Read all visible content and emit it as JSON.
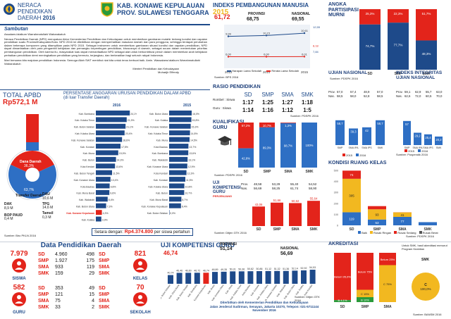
{
  "header": {
    "title_line1": "NERACA",
    "title_line2": "PENDIDIKAN",
    "title_line3": "DAERAH",
    "year": "2016",
    "region_line1": "KAB. KONAWE KEPULAUAN",
    "region_line2": "PROV. SULAWESI TENGGARA"
  },
  "colors": {
    "navy": "#1e4a8a",
    "red": "#e3241b",
    "blue": "#2e6fc4",
    "yellow": "#f2b820",
    "gray": "#8a8a8a",
    "green": "#2a9a3a"
  },
  "sambutan": {
    "title": "Sambutan",
    "greeting": "Assalamu'alaikum Warrahmatullahi Wabarakatuh",
    "body1": "Neraca Pendidikan Daerah (NPD) merupakan Aktor Kementerian Pendidikan dan Kebudayaan untuk memberikan gambaran mutahir tentang kondisi dan capaian pendidikan suatu Provinsi/Kabupaten/Kota. NPD 2016 ini diterbitkan dengan memperhatikan masukan daerah dan para pengguna, sehingga terdapat perubahan dalam beberapa komponen yang ditampilkan pada NPD 2015. Sebagai instrumen untuk memberikan gambaran situasi kondisi dan capaian pendidikan, NPD dapat dimanfaatkan oleh para pengambil kebijakan dan pemangku kepentingan pendidikan, khususnya di daerah, sebagai acuan dalam menentukan prioritas pembangunan pendidikan. Oleh karena itu, masyarakat luas dapat memanfaatkan NPD sebagai alat untuk berkontribusi penuh dalam memberikan arah kebijakan perbaikan pendidikan demi meningkatkan pendidikan yang bermutu, terjangkau, dan berkeadilan bagi seluruh rakyat Indonesia.",
    "body2": "Mari bersama kita majukan pendidikan Indonesia. Semoga Allah SWT meridhoi niat kita untuk terus berbuat baik. Amin. Wassalamu'alaikum Warrahmatullahi Wabarakatuh",
    "signer_title": "Menteri Pendidikan dan Kebudayaan",
    "signer_name": "Muhadjir Effendy"
  },
  "ipm": {
    "title": "INDEKS PEMBANGUNAN MANUSIA",
    "year": "2015",
    "region_value": "61,72",
    "prov_label": "PROVINSI",
    "prov_value": "68,75",
    "nas_label": "NASIONAL",
    "nas_value": "69,55",
    "legend1": "Harapan Lama Sekolah",
    "legend2": "Rerata Lama Sekolah",
    "source": "Sumber: BPS 2016"
  },
  "apm": {
    "title_line1": "ANGKA",
    "title_line2": "PARTISIPASI",
    "title_line3": "MURNI",
    "categories": [
      "SD",
      "SMP",
      "SMA"
    ],
    "source": "Sumber: PDSPK 2016"
  },
  "apbd": {
    "title": "TOTAL APBD",
    "total": "Rp572,1 M",
    "dana_daerah_label": "Dana Daerah",
    "dana_daerah_value": "36,3%",
    "transfer_label": "Transfer Daerah",
    "transfer_value": "63,7%",
    "dak_label": "DAK",
    "dak_value": "8,9 M",
    "dau_label": "DAU",
    "dau_value": "10,6 M",
    "bop_label": "BOP PAUD",
    "bop_value": "0,4 M",
    "tpg_label": "TPG",
    "tpg_value": "14,6 M",
    "tamsil_label": "Tamsil",
    "tamsil_value": "0,3 M",
    "source": "Sumber: Biro PKLN 2016"
  },
  "anggaran": {
    "title": "PERSENTASE ANGGARAN URUSAN PENDIDIKAN DALAM APBD",
    "subtitle": "(di luar Transfer Daerah)",
    "year_left": "2016",
    "year_right": "2015",
    "footer_label": "Setara dengan:",
    "footer_value": "Rp4.374.800",
    "footer_suffix": "per siswa pertahun"
  },
  "rasio": {
    "title": "RASIO PENDIDIKAN",
    "row1_label": "Rombel : Siswa",
    "row2_label": "Guru : Siswa",
    "cols": [
      "SD",
      "SMP",
      "SMA",
      "SMK"
    ],
    "row1": [
      "1:17",
      "1:25",
      "1:27",
      "1:18"
    ],
    "row2": [
      "1:14",
      "1:16",
      "1:12",
      "1:5"
    ],
    "source": "Sumber: PDSPK 2016"
  },
  "kualifikasi": {
    "title_line1": "KUALIFIKASI",
    "title_line2": "GURU",
    "categories": [
      "SD",
      "SMP",
      "SMA",
      "SMK"
    ],
    "source": "Sumber: PDSPK 2016"
  },
  "ukg_level": {
    "title_line1": "UJI",
    "title_line2": "KOMPETENSI",
    "title_line3": "GURU",
    "subtitle": "PERJENJANG",
    "rows_label": [
      "Prov.",
      "Nas."
    ],
    "values_prov": [
      "48,58",
      "53,29",
      "55,40",
      "54,52"
    ],
    "values_nas": [
      "56,69",
      "58,25",
      "61,74",
      "58,90"
    ],
    "categories": [
      "SD",
      "SMP",
      "SMA",
      "SMK"
    ],
    "source": "Sumber: Ditjen GTK 2016"
  },
  "un": {
    "title": "UJIAN NASIONAL",
    "rows_label": [
      "Prov.",
      "Nas."
    ],
    "values_prov": [
      "57,0",
      "57,4",
      "48,9",
      "57,0"
    ],
    "values_nas": [
      "58,5",
      "58,0",
      "52,8",
      "58,5"
    ],
    "categories": [
      "SMP",
      "SMA IPA",
      "SMA IPS",
      "SMK"
    ],
    "legend_2015": "2015",
    "legend_2016": "2016"
  },
  "iiun": {
    "title_line1": "INDEKS INTEGRITAS",
    "title_line2": "UJIAN NASIONAL",
    "rows_label": [
      "Prov.",
      "Nas."
    ],
    "values_prov": [
      "59,1",
      "62,9",
      "55,7",
      "63,0"
    ],
    "values_nas": [
      "62,6",
      "72,0",
      "60,5",
      "70,0"
    ],
    "categories": [
      "SMP",
      "SMA IPA",
      "SMA IPS",
      "SMK"
    ],
    "legend_2015": "2015",
    "legend_2016": "2016",
    "source": "Sumber: Puspendik 2016"
  },
  "kondisi": {
    "title": "KONDISI RUANG KELAS",
    "categories": [
      "SD",
      "SMP",
      "SMA",
      "SMK"
    ],
    "legend": [
      "Baik",
      "Rusak Ringan",
      "Rusak Sedang",
      "Rusak Berat"
    ],
    "source": "Sumber: PDSPK 2016"
  },
  "data_pend": {
    "title": "Data Pendidikan Daerah",
    "siswa_total": "7.979",
    "siswa_label": "SISWA",
    "siswa_rows": [
      {
        "level": "SD",
        "value": "4.960"
      },
      {
        "level": "SMP",
        "value": "1.927"
      },
      {
        "level": "SMA",
        "value": "933"
      },
      {
        "level": "SMK",
        "value": "159"
      }
    ],
    "kelas_total": "821",
    "kelas_label": "KELAS",
    "kelas_rows": [
      {
        "value": "498",
        "level": "SD"
      },
      {
        "value": "175",
        "level": "SMP"
      },
      {
        "value": "119",
        "level": "SMA"
      },
      {
        "value": "29",
        "level": "SMK"
      }
    ],
    "guru_total": "582",
    "guru_label": "GURU",
    "guru_rows": [
      {
        "level": "SD",
        "value": "353"
      },
      {
        "level": "SMP",
        "value": "121"
      },
      {
        "level": "SMA",
        "value": "75"
      },
      {
        "level": "SMK",
        "value": "33"
      }
    ],
    "sekolah_total": "70",
    "sekolah_label": "SEKOLAH",
    "sekolah_rows": [
      {
        "value": "49",
        "level": "SD"
      },
      {
        "value": "15",
        "level": "SMP"
      },
      {
        "value": "4",
        "level": "SMA"
      },
      {
        "value": "2",
        "level": "SMK"
      }
    ]
  },
  "ukg": {
    "title": "UJI KOMPETENSI GURU",
    "region_value": "46,74",
    "prov_label": "PROVINSI",
    "prov_value": "51,14",
    "nas_label": "NASIONAL",
    "nas_value": "56,69",
    "source": "Sumber: Ditjen GTK 2016"
  },
  "footer": {
    "line1": "Diterbitkan oleh Kementerian Pendidikan dan Kebudayaan",
    "line2": "Jalan Jenderal Sudirman, Senayan, Jakarta 10270, Telepon: 021-5711144",
    "line3": "November 2016"
  },
  "akreditasi": {
    "title": "AKREDITASI",
    "note": "Untuk SMK, hasil akreditasi menurut Program Keahlian",
    "categories": [
      "SD",
      "SMP",
      "SMA",
      "SMK"
    ],
    "smk_label": "SMK",
    "source": "Sumber: BANSM 2016"
  },
  "chart_data": [
    {
      "type": "line",
      "title": "INDEKS PEMBANGUNAN MANUSIA",
      "x": [
        "2013",
        "2014",
        "2015"
      ],
      "series": [
        {
          "name": "Harapan Lama Sekolah",
          "values": [
            9.99,
            10.15,
            10.61
          ]
        },
        {
          "name": "Rerata Lama Sekolah",
          "values": [
            6.0,
            6.0,
            6.01
          ]
        }
      ],
      "prov_nas_labels": {
        "prov_hls": "12,91",
        "nas_hls": "12,55",
        "prov_rls": "8,18",
        "nas_rls": "7,84"
      }
    },
    {
      "type": "bar",
      "title": "ANGKA PARTISIPASI MURNI",
      "categories": [
        "SD",
        "SMP",
        "SMA"
      ],
      "series": [
        {
          "name": "Kab",
          "values": [
            74.7,
            77.7,
            48.3
          ]
        },
        {
          "name": "Gap",
          "values": [
            25.3,
            22.3,
            51.7
          ]
        }
      ],
      "ylim": [
        0,
        100
      ]
    },
    {
      "type": "bar",
      "title": "PERSENTASE ANGGARAN URUSAN PENDIDIKAN DALAM APBD 2016",
      "categories": [
        "Kab. Bombana",
        "Kab. Kolaka Timur",
        "Kab. Buton Selatan",
        "Kab. Kolaka Utara",
        "Kab. Konawe Selatan",
        "Kab. Konawe",
        "Kab. Muna",
        "Kab. Buton",
        "Kota Kendari",
        "Kab. Buton Tengah",
        "Kab. Konawe Utara",
        "Kota Baubau",
        "Kab. Muna Barat",
        "Kab. Wakatobi",
        "Kab. Buton Utara",
        "Kab. Konawe Kepulauan",
        "Kab. Kolaka"
      ],
      "values": [
        24.1,
        21.9,
        21.1,
        20.4,
        18.6,
        17.5,
        15.9,
        14.3,
        13.6,
        11.5,
        10.4,
        9.8,
        9.6,
        8.4,
        7.3,
        4.3,
        3.9
      ],
      "highlight": "Kab. Konawe Kepulauan"
    },
    {
      "type": "bar",
      "title": "PERSENTASE ANGGARAN URUSAN PENDIDIKAN DALAM APBD 2015",
      "categories": [
        "Kab. Buton Utara",
        "Kab. Kolaka",
        "Kab. Konawe Selatan",
        "Kab. Kolaka Timur",
        "Kab. Muna",
        "Kota Baubau",
        "Kab. Bombana",
        "Kab. Wakatobi",
        "Kab. Konawe Utara",
        "Kota Kendari",
        "Kab. Konawe",
        "Kab. Kolaka Utara",
        "Kab. Buton",
        "Kab. Muna Barat",
        "Kab. Konawe Kepulauan",
        "Kab. Buton Selatan"
      ],
      "values": [
        16.0,
        15.8,
        15.3,
        14.8,
        14.5,
        13.7,
        13.6,
        13.1,
        12.9,
        12.3,
        11.5,
        10.8,
        10.7,
        8.7,
        8.4,
        0.0
      ]
    },
    {
      "type": "bar",
      "title": "KUALIFIKASI GURU",
      "categories": [
        "SD",
        "SMP",
        "SMA",
        "SMK"
      ],
      "series": [
        {
          "name": "S1 ke atas",
          "values": [
            42.8,
            89.3,
            98.7,
            100.0
          ]
        },
        {
          "name": "Di bawah S1",
          "values": [
            57.2,
            10.7,
            1.3,
            0.0
          ]
        }
      ],
      "ylim": [
        0,
        100
      ]
    },
    {
      "type": "bar",
      "title": "UJI KOMPETENSI GURU PERJENJANG",
      "categories": [
        "SD",
        "SMP",
        "SMA",
        "SMK"
      ],
      "values": [
        43.06,
        51.66,
        50.62,
        55.64
      ],
      "ylim": [
        0,
        100
      ]
    },
    {
      "type": "bar",
      "title": "UJIAN NASIONAL",
      "categories": [
        "SMP",
        "SMA IPA",
        "SMA IPS",
        "SMK"
      ],
      "series": [
        {
          "name": "2015",
          "values": [
            0,
            0,
            0,
            0
          ]
        },
        {
          "name": "2016",
          "values": [
            58.7,
            39.3,
            42.0,
            58.7
          ]
        }
      ],
      "ylim": [
        0,
        100
      ]
    },
    {
      "type": "bar",
      "title": "INDEKS INTEGRITAS UJIAN NASIONAL",
      "categories": [
        "SMP",
        "SMA IPA",
        "SMA IPS",
        "SMK"
      ],
      "series": [
        {
          "name": "2015",
          "values": [
            0,
            0,
            0,
            0
          ]
        },
        {
          "name": "2016",
          "values": [
            57.0,
            29.2,
            25.4,
            20.2
          ]
        }
      ],
      "ylim": [
        0,
        100
      ]
    },
    {
      "type": "bar",
      "title": "KONDISI RUANG KELAS",
      "categories": [
        "SD",
        "SMP",
        "SMA",
        "SMK"
      ],
      "series": [
        {
          "name": "Baik",
          "values": [
            119,
            53,
            77,
            29
          ]
        },
        {
          "name": "Rusak Ringan",
          "values": [
            305,
            93,
            41,
            0
          ]
        },
        {
          "name": "Rusak Sedang",
          "values": [
            74,
            29,
            1,
            0
          ]
        },
        {
          "name": "Rusak Berat",
          "values": [
            0,
            0,
            0,
            0
          ]
        }
      ]
    },
    {
      "type": "bar",
      "title": "UJI KOMPETENSI GURU",
      "categories": [
        "Kab. Buton Selatan",
        "Kab. Muna Barat",
        "Kab. Buton Tengah",
        "Kab. Bombana",
        "Kab. Konawe Kepulauan",
        "Kab. Buton",
        "Kab. Konawe Utara",
        "Kab. Muna",
        "Kab. Kolaka Timur",
        "Kota Baubau",
        "Kab. Konawe",
        "Kab. Kolaka Utara",
        "Kab. Konawe Selatan",
        "Kab. Wakatobi",
        "Kab. Buton Utara",
        "Kab. Kolaka",
        "Kota Kendari"
      ],
      "values": [
        40.74,
        46.46,
        46.6,
        46.72,
        46.74,
        48.89,
        49.35,
        50.31,
        50.36,
        50.62,
        50.86,
        51.12,
        51.32,
        51.36,
        52.14,
        52.92,
        54.53
      ],
      "ylim": [
        0,
        100
      ]
    },
    {
      "type": "bar",
      "title": "AKREDITASI",
      "categories": [
        "SD",
        "SMP",
        "SMA"
      ],
      "series": [
        {
          "name": "Belum",
          "values": [
            95.9,
            75.0,
            25.0
          ]
        },
        {
          "name": "C",
          "values": [
            0,
            15.0,
            75.0
          ]
        },
        {
          "name": "B",
          "values": [
            4.1,
            10.0,
            0
          ]
        }
      ]
    },
    {
      "type": "pie",
      "title": "AKREDITASI SMK",
      "categories": [
        "C"
      ],
      "values": [
        100.0
      ]
    }
  ]
}
